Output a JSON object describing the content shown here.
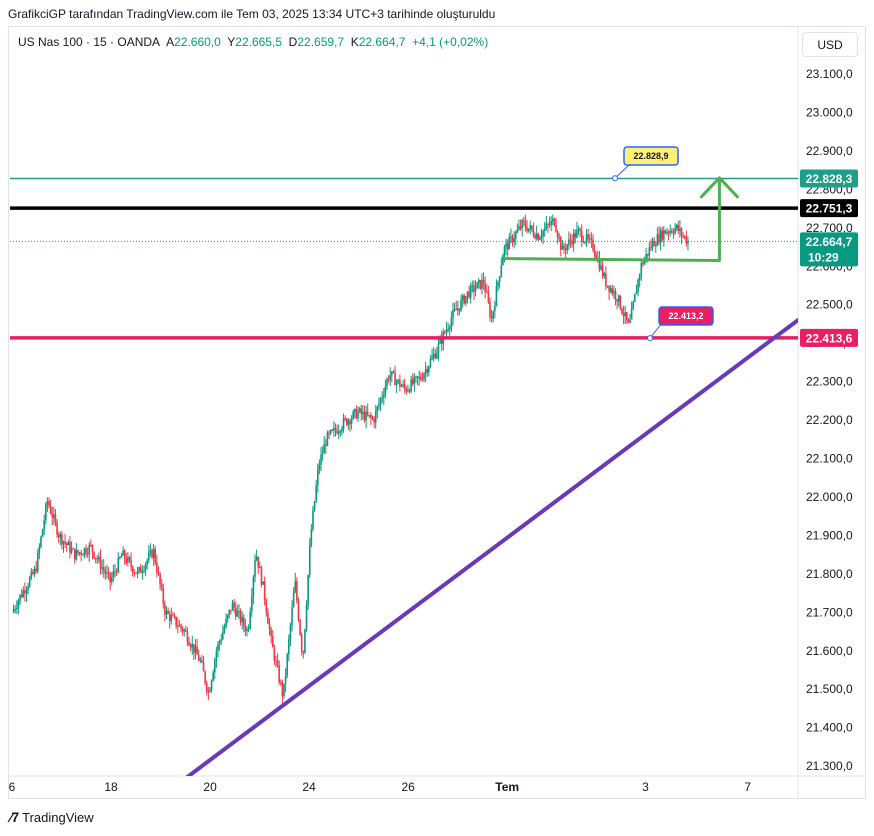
{
  "header": {
    "attribution": "GrafikciGP tarafından TradingView.com ile Tem 03, 2025 13:34 UTC+3 tarihinde oluşturuldu"
  },
  "legend": {
    "symbol": "US Nas 100 · 15 · OANDA",
    "open_label": "A",
    "open": "22.660,0",
    "high_label": "Y",
    "high": "22.665,5",
    "low_label": "D",
    "low": "22.659,7",
    "close_label": "K",
    "close": "22.664,7",
    "change": "+4,1 (+0,02%)"
  },
  "currency": "USD",
  "footer": {
    "brand": "TradingView"
  },
  "colors": {
    "up": "#089981",
    "down": "#f23645",
    "teal_line": "#1f9e89",
    "black_line": "#000000",
    "pink_line": "#e91e63",
    "purple_line": "#673ab7",
    "green_arrow": "#4caf50",
    "callout_yellow": "#fff176",
    "callout_blue": "#2962ff"
  },
  "chart_data": {
    "type": "candlestick",
    "symbol": "US Nas 100",
    "interval": "15",
    "y_ticks": [
      "23.100,0",
      "23.000,0",
      "22.900,0",
      "22.800,0",
      "22.700,0",
      "22.600,0",
      "22.500,0",
      "22.400,0",
      "22.300,0",
      "22.200,0",
      "22.100,0",
      "22.000,0",
      "21.900,0",
      "21.800,0",
      "21.700,0",
      "21.600,0",
      "21.500,0",
      "21.400,0",
      "21.300,0"
    ],
    "y_tick_values": [
      23100,
      23000,
      22900,
      22800,
      22700,
      22600,
      22500,
      22400,
      22300,
      22200,
      22100,
      22000,
      21900,
      21800,
      21700,
      21600,
      21500,
      21400,
      21300
    ],
    "ylim": [
      21290,
      23160
    ],
    "x_ticks": [
      {
        "label": "6",
        "pos": 0.0
      },
      {
        "label": "18",
        "pos": 0.126
      },
      {
        "label": "20",
        "pos": 0.252
      },
      {
        "label": "24",
        "pos": 0.378
      },
      {
        "label": "26",
        "pos": 0.504
      },
      {
        "label": "Tem",
        "pos": 0.63
      },
      {
        "label": "3",
        "pos": 0.806
      },
      {
        "label": "7",
        "pos": 0.936
      }
    ],
    "price_path": [
      [
        0.0,
        21700
      ],
      [
        0.01,
        21740
      ],
      [
        0.03,
        21810
      ],
      [
        0.045,
        21990
      ],
      [
        0.06,
        21900
      ],
      [
        0.08,
        21850
      ],
      [
        0.1,
        21870
      ],
      [
        0.125,
        21780
      ],
      [
        0.14,
        21850
      ],
      [
        0.16,
        21800
      ],
      [
        0.18,
        21860
      ],
      [
        0.195,
        21700
      ],
      [
        0.22,
        21650
      ],
      [
        0.24,
        21570
      ],
      [
        0.25,
        21490
      ],
      [
        0.26,
        21600
      ],
      [
        0.28,
        21720
      ],
      [
        0.3,
        21650
      ],
      [
        0.31,
        21860
      ],
      [
        0.32,
        21760
      ],
      [
        0.33,
        21620
      ],
      [
        0.345,
        21480
      ],
      [
        0.36,
        21780
      ],
      [
        0.37,
        21580
      ],
      [
        0.38,
        21900
      ],
      [
        0.39,
        22080
      ],
      [
        0.4,
        22150
      ],
      [
        0.42,
        22190
      ],
      [
        0.44,
        22220
      ],
      [
        0.46,
        22200
      ],
      [
        0.48,
        22320
      ],
      [
        0.5,
        22280
      ],
      [
        0.52,
        22310
      ],
      [
        0.54,
        22380
      ],
      [
        0.56,
        22470
      ],
      [
        0.58,
        22530
      ],
      [
        0.6,
        22560
      ],
      [
        0.61,
        22460
      ],
      [
        0.625,
        22640
      ],
      [
        0.65,
        22710
      ],
      [
        0.67,
        22680
      ],
      [
        0.69,
        22720
      ],
      [
        0.7,
        22640
      ],
      [
        0.72,
        22690
      ],
      [
        0.74,
        22650
      ],
      [
        0.755,
        22560
      ],
      [
        0.77,
        22520
      ],
      [
        0.785,
        22440
      ],
      [
        0.8,
        22600
      ],
      [
        0.815,
        22660
      ],
      [
        0.83,
        22690
      ],
      [
        0.845,
        22700
      ],
      [
        0.86,
        22664.7
      ]
    ],
    "horizontal_levels": [
      {
        "name": "upper-target",
        "value": 22828.3,
        "label": "22.828,3",
        "color": "#1f9e89"
      },
      {
        "name": "resistance",
        "value": 22751.3,
        "label": "22.751,3",
        "color": "#000000"
      },
      {
        "name": "support",
        "value": 22413.6,
        "label": "22.413,6",
        "color": "#e91e63"
      }
    ],
    "current_price": {
      "value": 22664.7,
      "label": "22.664,7",
      "countdown": "10:29"
    },
    "callouts": [
      {
        "name": "callout-high",
        "label": "22.828,9",
        "value": 22828.9
      },
      {
        "name": "callout-low",
        "label": "22.413,2",
        "value": 22413.2
      }
    ],
    "trendline": {
      "from": {
        "pos": 0.222,
        "value": 21270
      },
      "to": {
        "pos": 1.0,
        "value": 22460
      }
    },
    "range_box": {
      "from_pos": 0.625,
      "to_pos": 0.9,
      "value": 22620
    },
    "arrow": {
      "pos": 0.9,
      "from_value": 22620,
      "to_value": 22830
    }
  }
}
